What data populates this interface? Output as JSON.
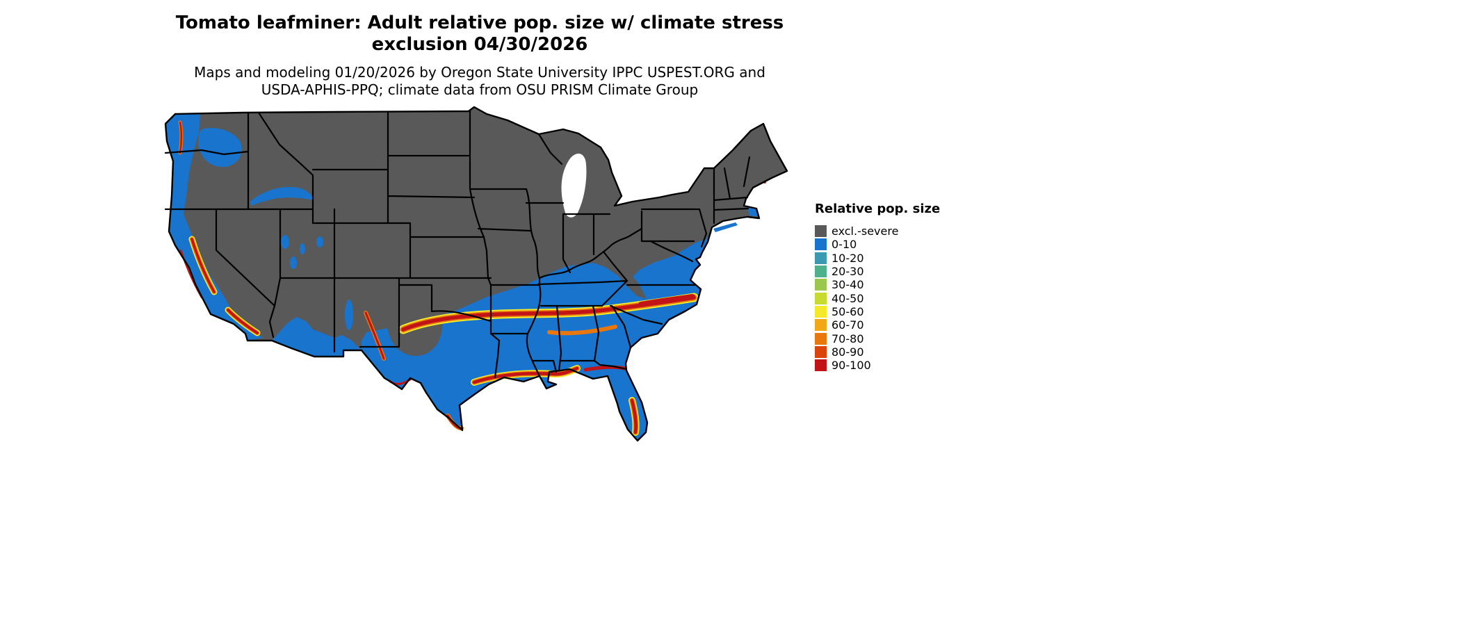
{
  "title": {
    "line1": "Tomato leafminer: Adult relative pop. size w/ climate stress",
    "line2": "exclusion 04/30/2026"
  },
  "subtitle": {
    "line1": "Maps and modeling 01/20/2026 by Oregon State University IPPC USPEST.ORG and",
    "line2": "USDA-APHIS-PPQ; climate data from OSU PRISM Climate Group"
  },
  "legend": {
    "title": "Relative pop. size",
    "entries": [
      {
        "label": "excl.-severe",
        "color": "#595959"
      },
      {
        "label": "0-10",
        "color": "#1874CD"
      },
      {
        "label": "10-20",
        "color": "#3B9AB2"
      },
      {
        "label": "20-30",
        "color": "#4FB08C"
      },
      {
        "label": "30-40",
        "color": "#9BC74F"
      },
      {
        "label": "40-50",
        "color": "#C6DA2F"
      },
      {
        "label": "50-60",
        "color": "#F5E92B"
      },
      {
        "label": "60-70",
        "color": "#F2A716"
      },
      {
        "label": "70-80",
        "color": "#E8780D"
      },
      {
        "label": "80-90",
        "color": "#DC4509"
      },
      {
        "label": "90-100",
        "color": "#C21417"
      }
    ]
  },
  "map": {
    "border_color": "#000000",
    "background_color": "#FFFFFF"
  }
}
